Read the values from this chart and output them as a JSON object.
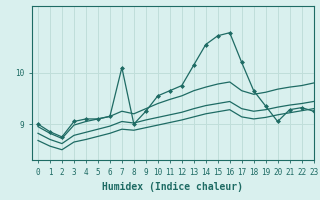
{
  "xlabel": "Humidex (Indice chaleur)",
  "background_color": "#d9f0ee",
  "line_color": "#1e6b64",
  "grid_color": "#c0deda",
  "xlim": [
    -0.5,
    23
  ],
  "ylim": [
    8.3,
    11.3
  ],
  "yticks": [
    9,
    10
  ],
  "xticks": [
    0,
    1,
    2,
    3,
    4,
    5,
    6,
    7,
    8,
    9,
    10,
    11,
    12,
    13,
    14,
    15,
    16,
    17,
    18,
    19,
    20,
    21,
    22,
    23
  ],
  "series_main": [
    9.0,
    8.85,
    8.75,
    9.05,
    9.1,
    9.1,
    9.15,
    10.1,
    9.0,
    9.25,
    9.55,
    9.65,
    9.75,
    10.15,
    10.55,
    10.72,
    10.78,
    10.2,
    9.65,
    9.35,
    9.05,
    9.28,
    9.32,
    9.25
  ],
  "series_upper": [
    8.95,
    8.82,
    8.72,
    8.98,
    9.05,
    9.1,
    9.15,
    9.25,
    9.2,
    9.3,
    9.4,
    9.48,
    9.55,
    9.65,
    9.72,
    9.78,
    9.82,
    9.65,
    9.58,
    9.62,
    9.68,
    9.72,
    9.75,
    9.8
  ],
  "series_mid": [
    8.82,
    8.7,
    8.62,
    8.78,
    8.84,
    8.9,
    8.96,
    9.05,
    9.02,
    9.08,
    9.13,
    9.18,
    9.23,
    9.3,
    9.36,
    9.4,
    9.44,
    9.3,
    9.25,
    9.28,
    9.33,
    9.37,
    9.4,
    9.44
  ],
  "series_lower": [
    8.68,
    8.57,
    8.5,
    8.65,
    8.7,
    8.76,
    8.82,
    8.9,
    8.88,
    8.93,
    8.98,
    9.03,
    9.08,
    9.14,
    9.2,
    9.24,
    9.28,
    9.14,
    9.1,
    9.13,
    9.18,
    9.22,
    9.26,
    9.3
  ]
}
